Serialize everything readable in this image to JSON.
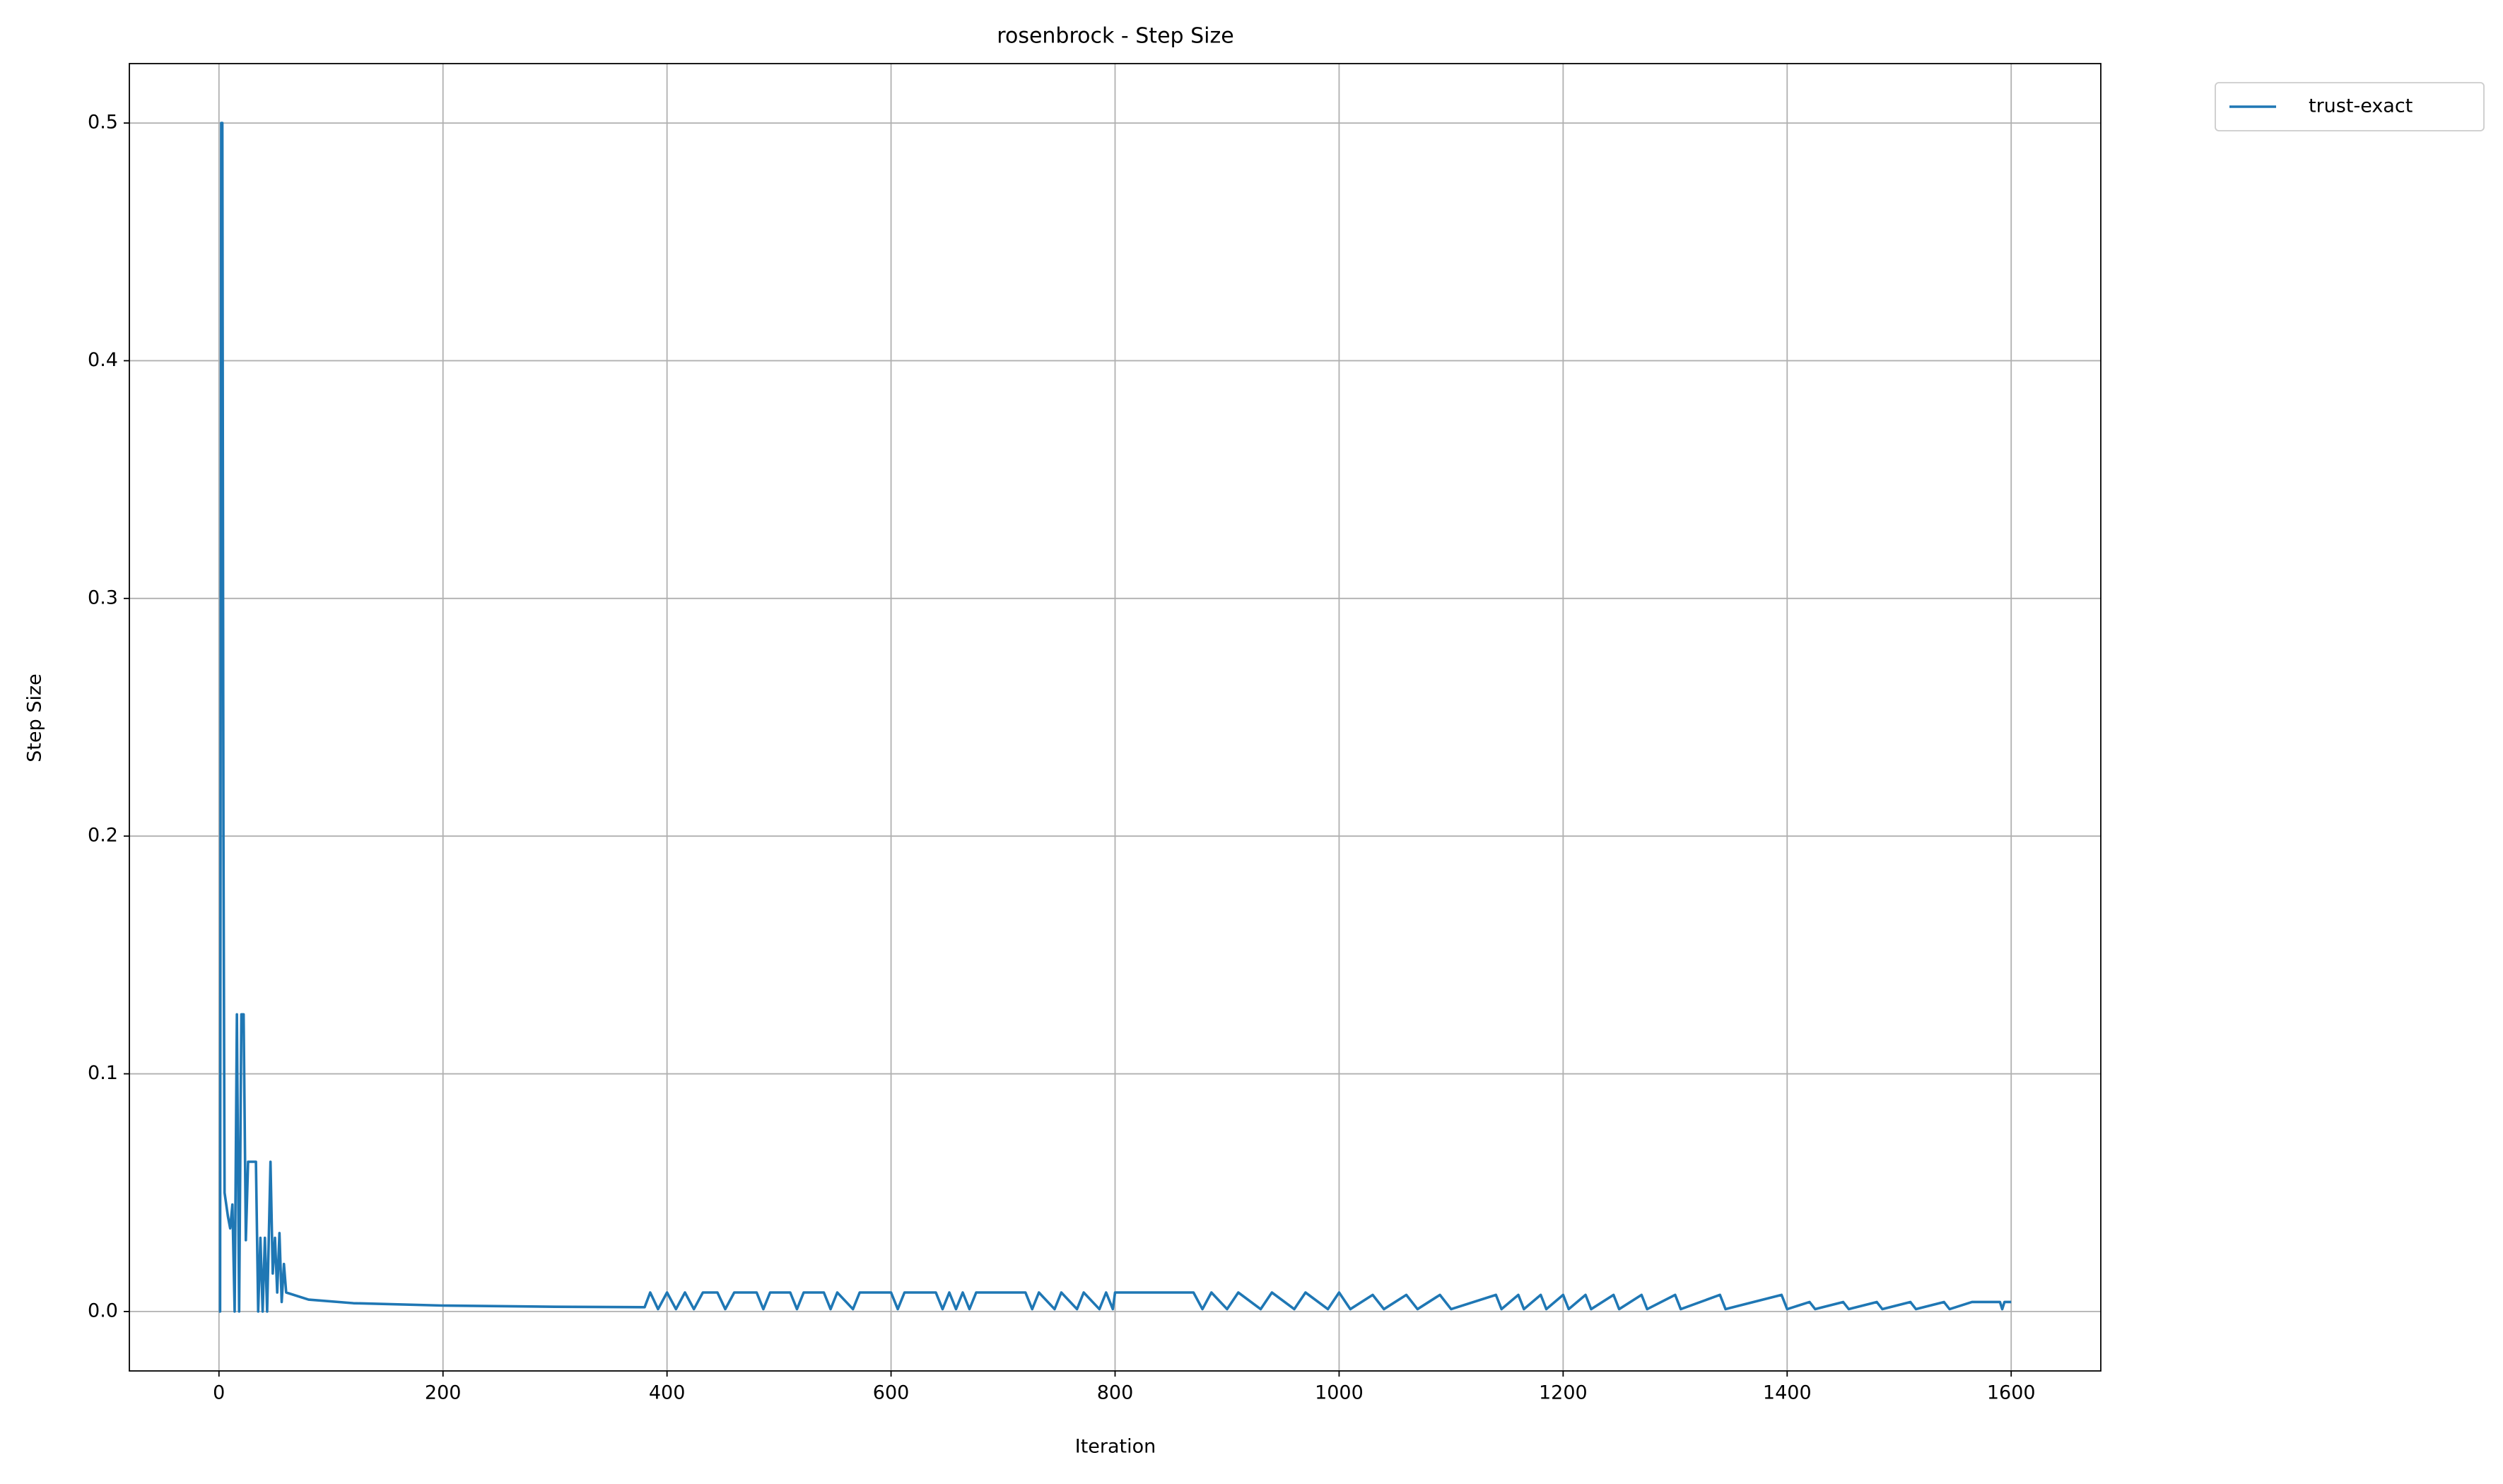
{
  "chart_data": {
    "type": "line",
    "title": "rosenbrock - Step Size",
    "x_label": "Iteration",
    "y_label": "Step Size",
    "x": [
      0,
      1,
      2,
      3,
      4,
      5,
      8,
      10,
      12,
      14,
      16,
      18,
      20,
      22,
      24,
      26,
      30,
      33,
      35,
      37,
      39,
      41,
      43,
      46,
      48,
      50,
      52,
      54,
      56,
      58,
      60,
      80,
      120,
      200,
      300,
      380,
      385,
      392,
      400,
      408,
      416,
      424,
      432,
      445,
      452,
      460,
      480,
      486,
      492,
      510,
      516,
      522,
      540,
      546,
      552,
      566,
      572,
      600,
      606,
      612,
      640,
      646,
      652,
      658,
      664,
      670,
      676,
      720,
      726,
      732,
      746,
      752,
      766,
      772,
      786,
      792,
      798,
      800,
      870,
      878,
      886,
      900,
      910,
      930,
      940,
      960,
      970,
      990,
      1000,
      1010,
      1030,
      1040,
      1060,
      1070,
      1090,
      1100,
      1140,
      1145,
      1160,
      1165,
      1180,
      1185,
      1200,
      1205,
      1220,
      1225,
      1245,
      1250,
      1270,
      1275,
      1300,
      1305,
      1340,
      1345,
      1395,
      1400,
      1420,
      1425,
      1450,
      1455,
      1480,
      1485,
      1510,
      1515,
      1540,
      1545,
      1565,
      1590,
      1592,
      1594,
      1600
    ],
    "series": [
      {
        "name": "trust-exact",
        "color": "#1f77b4",
        "values": [
          0,
          0,
          0.5,
          0.5,
          0.2,
          0.05,
          0.04,
          0.035,
          0.045,
          0,
          0.125,
          0,
          0.125,
          0.125,
          0.03,
          0.063,
          0.063,
          0.063,
          0,
          0.031,
          0,
          0.031,
          0,
          0.063,
          0.016,
          0.031,
          0.008,
          0.033,
          0.004,
          0.02,
          0.008,
          0.005,
          0.0035,
          0.0025,
          0.002,
          0.0018,
          0.008,
          0.001,
          0.008,
          0.001,
          0.008,
          0.001,
          0.008,
          0.008,
          0.001,
          0.008,
          0.008,
          0.001,
          0.008,
          0.008,
          0.001,
          0.008,
          0.008,
          0.001,
          0.008,
          0.001,
          0.008,
          0.008,
          0.001,
          0.008,
          0.008,
          0.001,
          0.008,
          0.001,
          0.008,
          0.001,
          0.008,
          0.008,
          0.001,
          0.008,
          0.001,
          0.008,
          0.001,
          0.008,
          0.001,
          0.008,
          0.001,
          0.008,
          0.008,
          0.001,
          0.008,
          0.001,
          0.008,
          0.001,
          0.008,
          0.001,
          0.008,
          0.001,
          0.008,
          0.001,
          0.007,
          0.001,
          0.007,
          0.001,
          0.007,
          0.001,
          0.007,
          0.001,
          0.007,
          0.001,
          0.007,
          0.001,
          0.007,
          0.001,
          0.007,
          0.001,
          0.007,
          0.001,
          0.007,
          0.001,
          0.007,
          0.001,
          0.007,
          0.001,
          0.007,
          0.001,
          0.004,
          0.001,
          0.004,
          0.001,
          0.004,
          0.001,
          0.004,
          0.001,
          0.004,
          0.001,
          0.004,
          0.004,
          0.001,
          0.004,
          0.004
        ]
      }
    ],
    "xlim": [
      -80,
      1680
    ],
    "ylim": [
      -0.025,
      0.525
    ],
    "xticks": [
      0,
      200,
      400,
      600,
      800,
      1000,
      1200,
      1400,
      1600
    ],
    "yticks": [
      {
        "value": 0,
        "label": "0.0"
      },
      0.1,
      0.2,
      0.3,
      0.4,
      0.5
    ],
    "grid": true,
    "legend": "outside upper right"
  }
}
